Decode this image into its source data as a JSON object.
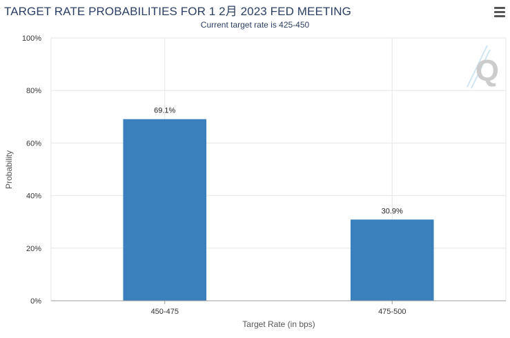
{
  "header": {
    "title": "TARGET RATE PROBABILITIES FOR 1 2月 2023 FED MEETING",
    "subtitle": "Current target rate is 425-450"
  },
  "watermark": {
    "letter": "Q"
  },
  "menu": {
    "icon": "hamburger-menu-icon"
  },
  "colors": {
    "bar": "#3a80bd",
    "grid": "#e6e6e6",
    "axis": "#999999"
  },
  "chart_data": {
    "type": "bar",
    "title": "TARGET RATE PROBABILITIES FOR 1 2月 2023 FED MEETING",
    "subtitle": "Current target rate is 425-450",
    "xlabel": "Target Rate (in bps)",
    "ylabel": "Probability",
    "categories": [
      "450-475",
      "475-500"
    ],
    "values": [
      69.1,
      30.9
    ],
    "data_labels": [
      "69.1%",
      "30.9%"
    ],
    "ylim": [
      0,
      100
    ],
    "yticks": [
      "0%",
      "20%",
      "40%",
      "60%",
      "80%",
      "100%"
    ],
    "grid": true,
    "legend": "none"
  }
}
